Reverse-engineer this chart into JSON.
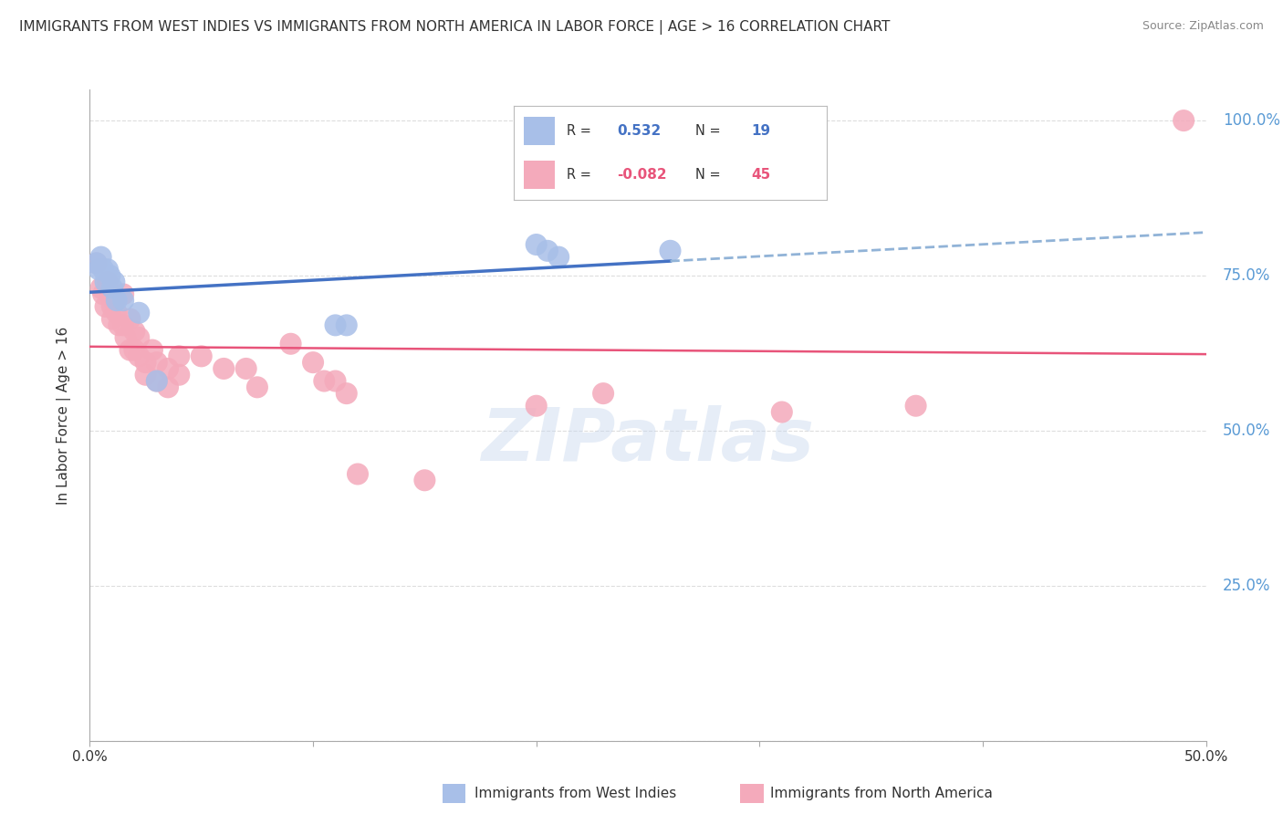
{
  "title": "IMMIGRANTS FROM WEST INDIES VS IMMIGRANTS FROM NORTH AMERICA IN LABOR FORCE | AGE > 16 CORRELATION CHART",
  "source": "Source: ZipAtlas.com",
  "ylabel": "In Labor Force | Age > 16",
  "x_min": 0.0,
  "x_max": 0.5,
  "y_min": 0.0,
  "y_max": 1.05,
  "y_ticks": [
    0.0,
    0.25,
    0.5,
    0.75,
    1.0
  ],
  "blue_R": 0.532,
  "blue_N": 19,
  "pink_R": -0.082,
  "pink_N": 45,
  "blue_scatter": [
    [
      0.003,
      0.77
    ],
    [
      0.004,
      0.76
    ],
    [
      0.005,
      0.78
    ],
    [
      0.006,
      0.76
    ],
    [
      0.007,
      0.74
    ],
    [
      0.008,
      0.76
    ],
    [
      0.009,
      0.75
    ],
    [
      0.01,
      0.73
    ],
    [
      0.011,
      0.74
    ],
    [
      0.012,
      0.71
    ],
    [
      0.015,
      0.71
    ],
    [
      0.022,
      0.69
    ],
    [
      0.03,
      0.58
    ],
    [
      0.11,
      0.67
    ],
    [
      0.115,
      0.67
    ],
    [
      0.2,
      0.8
    ],
    [
      0.205,
      0.79
    ],
    [
      0.21,
      0.78
    ],
    [
      0.26,
      0.79
    ]
  ],
  "pink_scatter": [
    [
      0.003,
      0.77
    ],
    [
      0.005,
      0.73
    ],
    [
      0.006,
      0.72
    ],
    [
      0.007,
      0.7
    ],
    [
      0.008,
      0.74
    ],
    [
      0.009,
      0.72
    ],
    [
      0.01,
      0.7
    ],
    [
      0.01,
      0.68
    ],
    [
      0.011,
      0.71
    ],
    [
      0.012,
      0.69
    ],
    [
      0.013,
      0.67
    ],
    [
      0.015,
      0.72
    ],
    [
      0.015,
      0.67
    ],
    [
      0.016,
      0.65
    ],
    [
      0.018,
      0.68
    ],
    [
      0.018,
      0.63
    ],
    [
      0.02,
      0.66
    ],
    [
      0.02,
      0.63
    ],
    [
      0.022,
      0.65
    ],
    [
      0.022,
      0.62
    ],
    [
      0.025,
      0.61
    ],
    [
      0.025,
      0.59
    ],
    [
      0.028,
      0.63
    ],
    [
      0.03,
      0.61
    ],
    [
      0.03,
      0.58
    ],
    [
      0.035,
      0.6
    ],
    [
      0.035,
      0.57
    ],
    [
      0.04,
      0.62
    ],
    [
      0.04,
      0.59
    ],
    [
      0.05,
      0.62
    ],
    [
      0.06,
      0.6
    ],
    [
      0.07,
      0.6
    ],
    [
      0.075,
      0.57
    ],
    [
      0.09,
      0.64
    ],
    [
      0.1,
      0.61
    ],
    [
      0.105,
      0.58
    ],
    [
      0.11,
      0.58
    ],
    [
      0.115,
      0.56
    ],
    [
      0.12,
      0.43
    ],
    [
      0.15,
      0.42
    ],
    [
      0.2,
      0.54
    ],
    [
      0.23,
      0.56
    ],
    [
      0.31,
      0.53
    ],
    [
      0.37,
      0.54
    ],
    [
      0.49,
      1.0
    ]
  ],
  "blue_line_color": "#4472C4",
  "blue_line_dashed_color": "#91B3D7",
  "pink_line_color": "#E8547A",
  "blue_dot_color": "#A8BFE8",
  "pink_dot_color": "#F4AABB",
  "grid_color": "#DDDDDD",
  "background_color": "#FFFFFF",
  "title_color": "#333333",
  "right_axis_label_color": "#5B9BD5",
  "watermark": "ZIPatlas"
}
